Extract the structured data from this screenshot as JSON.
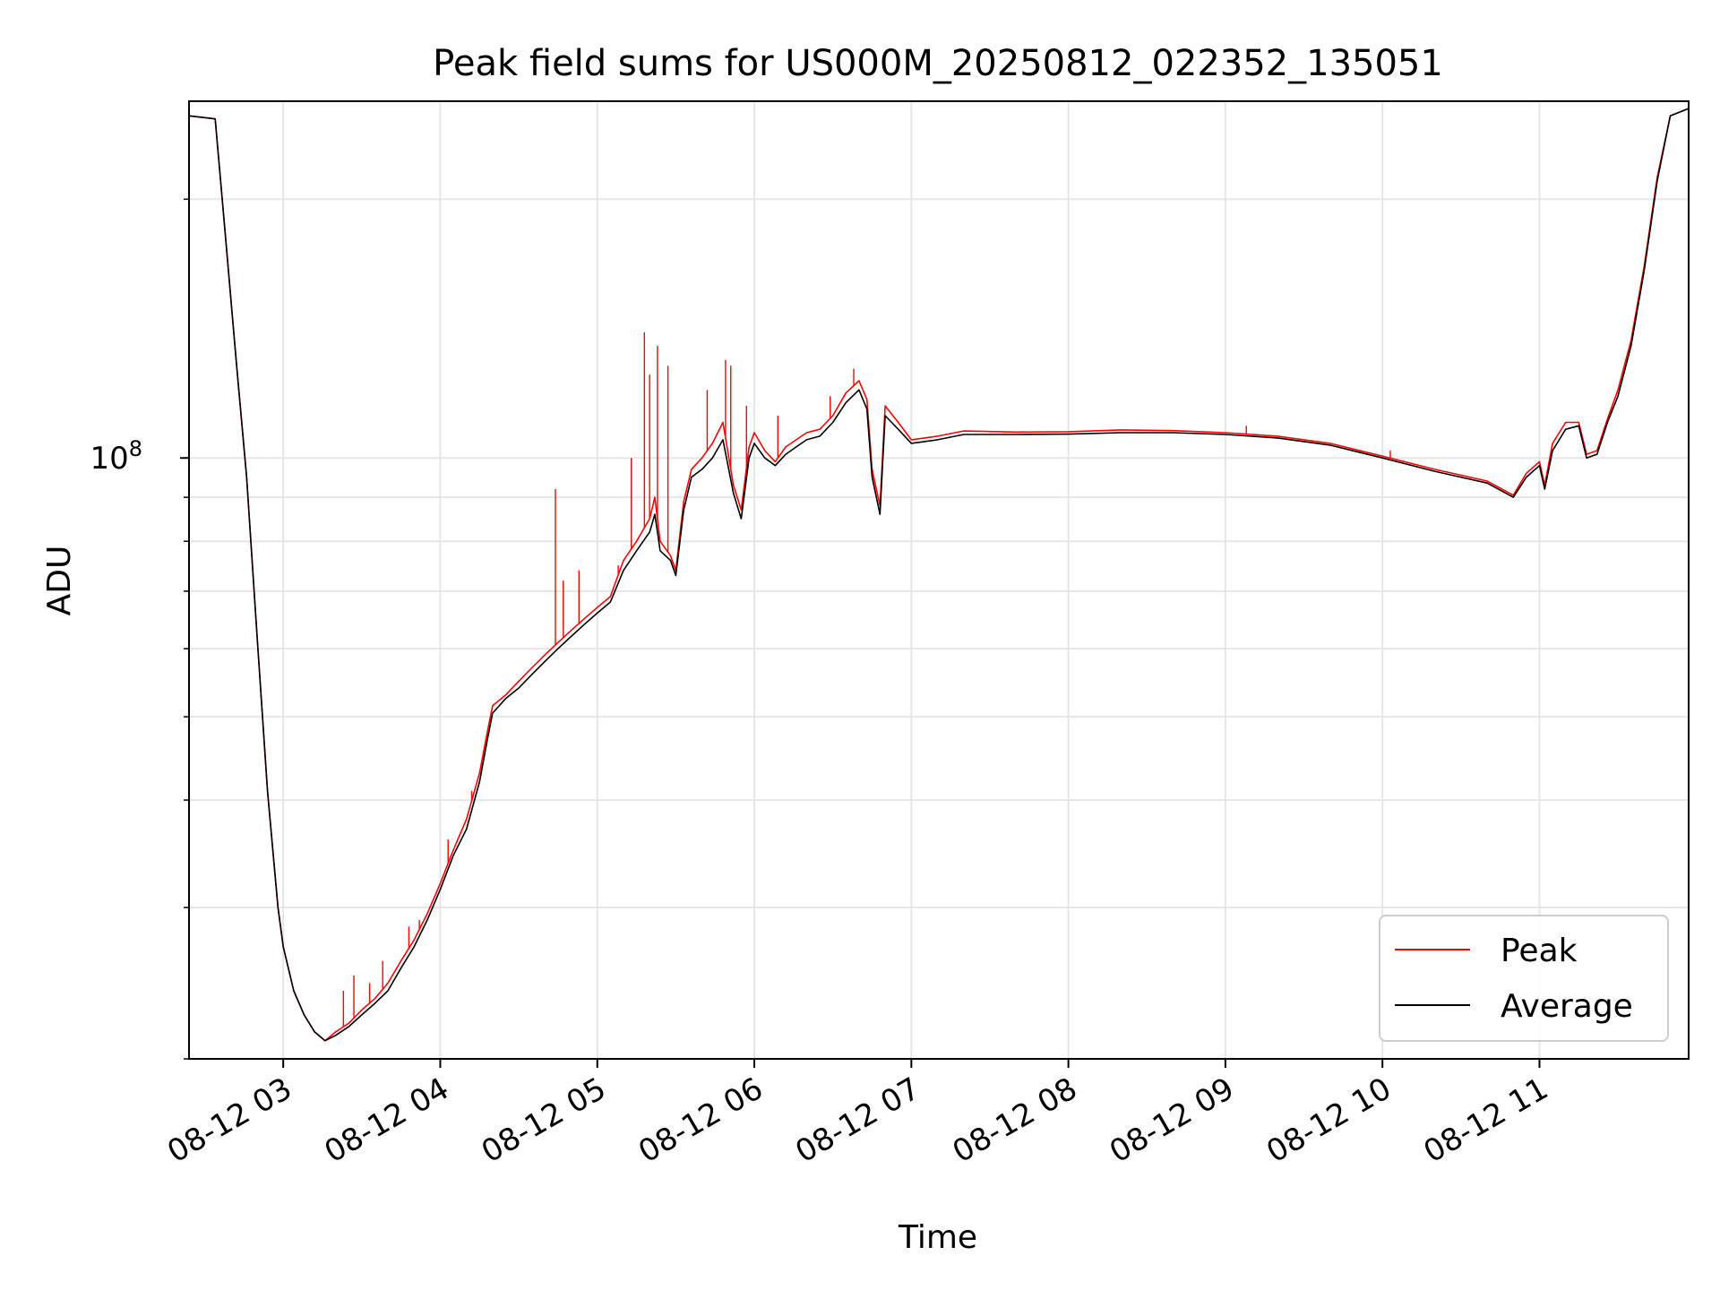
{
  "chart_data": {
    "type": "line",
    "title": "Peak field sums for US000M_20250812_022352_135051",
    "xlabel": "Time",
    "ylabel": "ADU",
    "yscale": "log",
    "ylim": [
      20000000,
      260000000
    ],
    "xlim": [
      "2025-08-12 02:24",
      "2025-08-12 11:57"
    ],
    "x_ticks": [
      "08-12 03",
      "08-12 04",
      "08-12 05",
      "08-12 06",
      "08-12 07",
      "08-12 08",
      "08-12 09",
      "08-12 10",
      "08-12 11"
    ],
    "y_ticks": [
      {
        "value": 100000000,
        "base": "10",
        "exp": "8"
      }
    ],
    "grid": true,
    "legend": {
      "placement": "lower-right",
      "entries": [
        {
          "label": "Peak",
          "color": "#ff0000"
        },
        {
          "label": "Average",
          "color": "#000000"
        }
      ]
    },
    "series": [
      {
        "name": "Average",
        "color": "#000000",
        "points": [
          [
            "2025-08-12 02:24",
            250000000
          ],
          [
            "2025-08-12 02:34",
            248000000
          ],
          [
            "2025-08-12 02:38",
            180000000
          ],
          [
            "2025-08-12 02:42",
            130000000
          ],
          [
            "2025-08-12 02:46",
            95000000
          ],
          [
            "2025-08-12 02:50",
            62000000
          ],
          [
            "2025-08-12 02:54",
            41000000
          ],
          [
            "2025-08-12 02:58",
            30000000
          ],
          [
            "2025-08-12 03:00",
            27000000
          ],
          [
            "2025-08-12 03:04",
            24000000
          ],
          [
            "2025-08-12 03:08",
            22500000
          ],
          [
            "2025-08-12 03:12",
            21500000
          ],
          [
            "2025-08-12 03:16",
            21000000
          ],
          [
            "2025-08-12 03:20",
            21300000
          ],
          [
            "2025-08-12 03:25",
            21800000
          ],
          [
            "2025-08-12 03:30",
            22500000
          ],
          [
            "2025-08-12 03:35",
            23200000
          ],
          [
            "2025-08-12 03:40",
            24000000
          ],
          [
            "2025-08-12 03:45",
            25500000
          ],
          [
            "2025-08-12 03:50",
            27000000
          ],
          [
            "2025-08-12 03:55",
            29000000
          ],
          [
            "2025-08-12 04:00",
            31500000
          ],
          [
            "2025-08-12 04:05",
            34500000
          ],
          [
            "2025-08-12 04:10",
            37000000
          ],
          [
            "2025-08-12 04:15",
            42000000
          ],
          [
            "2025-08-12 04:18",
            47000000
          ],
          [
            "2025-08-12 04:20",
            50500000
          ],
          [
            "2025-08-12 04:25",
            52500000
          ],
          [
            "2025-08-12 04:30",
            54000000
          ],
          [
            "2025-08-12 04:35",
            56000000
          ],
          [
            "2025-08-12 04:40",
            58000000
          ],
          [
            "2025-08-12 04:45",
            60000000
          ],
          [
            "2025-08-12 04:50",
            62000000
          ],
          [
            "2025-08-12 04:55",
            64000000
          ],
          [
            "2025-08-12 05:00",
            66000000
          ],
          [
            "2025-08-12 05:05",
            68000000
          ],
          [
            "2025-08-12 05:10",
            74000000
          ],
          [
            "2025-08-12 05:15",
            78000000
          ],
          [
            "2025-08-12 05:20",
            82000000
          ],
          [
            "2025-08-12 05:22",
            86000000
          ],
          [
            "2025-08-12 05:24",
            78000000
          ],
          [
            "2025-08-12 05:28",
            76000000
          ],
          [
            "2025-08-12 05:30",
            73000000
          ],
          [
            "2025-08-12 05:33",
            87000000
          ],
          [
            "2025-08-12 05:36",
            95000000
          ],
          [
            "2025-08-12 05:40",
            97000000
          ],
          [
            "2025-08-12 05:44",
            100000000
          ],
          [
            "2025-08-12 05:48",
            105000000
          ],
          [
            "2025-08-12 05:52",
            91000000
          ],
          [
            "2025-08-12 05:55",
            85000000
          ],
          [
            "2025-08-12 05:58",
            100000000
          ],
          [
            "2025-08-12 06:00",
            104000000
          ],
          [
            "2025-08-12 06:04",
            100000000
          ],
          [
            "2025-08-12 06:08",
            98000000
          ],
          [
            "2025-08-12 06:12",
            101000000
          ],
          [
            "2025-08-12 06:16",
            103000000
          ],
          [
            "2025-08-12 06:20",
            105000000
          ],
          [
            "2025-08-12 06:25",
            106000000
          ],
          [
            "2025-08-12 06:30",
            110000000
          ],
          [
            "2025-08-12 06:35",
            116000000
          ],
          [
            "2025-08-12 06:40",
            120000000
          ],
          [
            "2025-08-12 06:43",
            114000000
          ],
          [
            "2025-08-12 06:45",
            95000000
          ],
          [
            "2025-08-12 06:48",
            86000000
          ],
          [
            "2025-08-12 06:50",
            112000000
          ],
          [
            "2025-08-12 06:55",
            108000000
          ],
          [
            "2025-08-12 07:00",
            104000000
          ],
          [
            "2025-08-12 07:10",
            105000000
          ],
          [
            "2025-08-12 07:20",
            106500000
          ],
          [
            "2025-08-12 07:40",
            106500000
          ],
          [
            "2025-08-12 08:00",
            106600000
          ],
          [
            "2025-08-12 08:20",
            107000000
          ],
          [
            "2025-08-12 08:40",
            107000000
          ],
          [
            "2025-08-12 09:00",
            106500000
          ],
          [
            "2025-08-12 09:20",
            105500000
          ],
          [
            "2025-08-12 09:40",
            103500000
          ],
          [
            "2025-08-12 10:00",
            100000000
          ],
          [
            "2025-08-12 10:20",
            96500000
          ],
          [
            "2025-08-12 10:40",
            93500000
          ],
          [
            "2025-08-12 10:50",
            90000000
          ],
          [
            "2025-08-12 10:55",
            95000000
          ],
          [
            "2025-08-12 11:00",
            98000000
          ],
          [
            "2025-08-12 11:02",
            92000000
          ],
          [
            "2025-08-12 11:05",
            102000000
          ],
          [
            "2025-08-12 11:10",
            108000000
          ],
          [
            "2025-08-12 11:15",
            109000000
          ],
          [
            "2025-08-12 11:18",
            100000000
          ],
          [
            "2025-08-12 11:22",
            101000000
          ],
          [
            "2025-08-12 11:26",
            110000000
          ],
          [
            "2025-08-12 11:30",
            118000000
          ],
          [
            "2025-08-12 11:35",
            135000000
          ],
          [
            "2025-08-12 11:40",
            165000000
          ],
          [
            "2025-08-12 11:45",
            210000000
          ],
          [
            "2025-08-12 11:50",
            250000000
          ],
          [
            "2025-08-12 11:57",
            255000000
          ]
        ]
      },
      {
        "name": "Peak",
        "color": "#ff0000",
        "points": [
          [
            "2025-08-12 02:24",
            250000000
          ],
          [
            "2025-08-12 02:34",
            248000000
          ],
          [
            "2025-08-12 02:38",
            180000000
          ],
          [
            "2025-08-12 02:42",
            130000000
          ],
          [
            "2025-08-12 02:46",
            95000000
          ],
          [
            "2025-08-12 02:50",
            62000000
          ],
          [
            "2025-08-12 02:54",
            41000000
          ],
          [
            "2025-08-12 02:58",
            30000000
          ],
          [
            "2025-08-12 03:00",
            27000000
          ],
          [
            "2025-08-12 03:04",
            24000000
          ],
          [
            "2025-08-12 03:08",
            22500000
          ],
          [
            "2025-08-12 03:12",
            21500000
          ],
          [
            "2025-08-12 03:16",
            21000000
          ],
          [
            "2025-08-12 03:20",
            21500000
          ],
          [
            "2025-08-12 03:25",
            22000000
          ],
          [
            "2025-08-12 03:30",
            22800000
          ],
          [
            "2025-08-12 03:35",
            23500000
          ],
          [
            "2025-08-12 03:40",
            24500000
          ],
          [
            "2025-08-12 03:45",
            26000000
          ],
          [
            "2025-08-12 03:50",
            27500000
          ],
          [
            "2025-08-12 03:55",
            29500000
          ],
          [
            "2025-08-12 04:00",
            32000000
          ],
          [
            "2025-08-12 04:05",
            35000000
          ],
          [
            "2025-08-12 04:10",
            38000000
          ],
          [
            "2025-08-12 04:15",
            43000000
          ],
          [
            "2025-08-12 04:18",
            48000000
          ],
          [
            "2025-08-12 04:20",
            51500000
          ],
          [
            "2025-08-12 04:25",
            53000000
          ],
          [
            "2025-08-12 04:30",
            55000000
          ],
          [
            "2025-08-12 04:35",
            57000000
          ],
          [
            "2025-08-12 04:40",
            59000000
          ],
          [
            "2025-08-12 04:45",
            61000000
          ],
          [
            "2025-08-12 04:50",
            63000000
          ],
          [
            "2025-08-12 04:55",
            65000000
          ],
          [
            "2025-08-12 05:00",
            67000000
          ],
          [
            "2025-08-12 05:05",
            69000000
          ],
          [
            "2025-08-12 05:10",
            76000000
          ],
          [
            "2025-08-12 05:15",
            80000000
          ],
          [
            "2025-08-12 05:20",
            85000000
          ],
          [
            "2025-08-12 05:22",
            90000000
          ],
          [
            "2025-08-12 05:24",
            80000000
          ],
          [
            "2025-08-12 05:28",
            77000000
          ],
          [
            "2025-08-12 05:30",
            74000000
          ],
          [
            "2025-08-12 05:33",
            89000000
          ],
          [
            "2025-08-12 05:36",
            97000000
          ],
          [
            "2025-08-12 05:40",
            100000000
          ],
          [
            "2025-08-12 05:44",
            104000000
          ],
          [
            "2025-08-12 05:48",
            110000000
          ],
          [
            "2025-08-12 05:52",
            93000000
          ],
          [
            "2025-08-12 05:55",
            87000000
          ],
          [
            "2025-08-12 05:58",
            103000000
          ],
          [
            "2025-08-12 06:00",
            107000000
          ],
          [
            "2025-08-12 06:04",
            102000000
          ],
          [
            "2025-08-12 06:08",
            99000000
          ],
          [
            "2025-08-12 06:12",
            103000000
          ],
          [
            "2025-08-12 06:16",
            105000000
          ],
          [
            "2025-08-12 06:20",
            107000000
          ],
          [
            "2025-08-12 06:25",
            108000000
          ],
          [
            "2025-08-12 06:30",
            112000000
          ],
          [
            "2025-08-12 06:35",
            119000000
          ],
          [
            "2025-08-12 06:40",
            123000000
          ],
          [
            "2025-08-12 06:43",
            117000000
          ],
          [
            "2025-08-12 06:45",
            97000000
          ],
          [
            "2025-08-12 06:48",
            88000000
          ],
          [
            "2025-08-12 06:50",
            115000000
          ],
          [
            "2025-08-12 06:55",
            110000000
          ],
          [
            "2025-08-12 07:00",
            105000000
          ],
          [
            "2025-08-12 07:10",
            106000000
          ],
          [
            "2025-08-12 07:20",
            107500000
          ],
          [
            "2025-08-12 07:40",
            107200000
          ],
          [
            "2025-08-12 08:00",
            107300000
          ],
          [
            "2025-08-12 08:20",
            107800000
          ],
          [
            "2025-08-12 08:40",
            107600000
          ],
          [
            "2025-08-12 09:00",
            107000000
          ],
          [
            "2025-08-12 09:20",
            106000000
          ],
          [
            "2025-08-12 09:40",
            104000000
          ],
          [
            "2025-08-12 10:00",
            100500000
          ],
          [
            "2025-08-12 10:20",
            97000000
          ],
          [
            "2025-08-12 10:40",
            94000000
          ],
          [
            "2025-08-12 10:50",
            90500000
          ],
          [
            "2025-08-12 10:55",
            96000000
          ],
          [
            "2025-08-12 11:00",
            99000000
          ],
          [
            "2025-08-12 11:02",
            93000000
          ],
          [
            "2025-08-12 11:05",
            104000000
          ],
          [
            "2025-08-12 11:10",
            110000000
          ],
          [
            "2025-08-12 11:15",
            110000000
          ],
          [
            "2025-08-12 11:18",
            101000000
          ],
          [
            "2025-08-12 11:22",
            102000000
          ],
          [
            "2025-08-12 11:26",
            111000000
          ],
          [
            "2025-08-12 11:30",
            120000000
          ],
          [
            "2025-08-12 11:35",
            137000000
          ],
          [
            "2025-08-12 11:40",
            167000000
          ],
          [
            "2025-08-12 11:45",
            212000000
          ],
          [
            "2025-08-12 11:50",
            250000000
          ],
          [
            "2025-08-12 11:57",
            255000000
          ]
        ],
        "spikes": [
          [
            "2025-08-12 03:23",
            24000000
          ],
          [
            "2025-08-12 03:27",
            25000000
          ],
          [
            "2025-08-12 03:33",
            24500000
          ],
          [
            "2025-08-12 03:38",
            26000000
          ],
          [
            "2025-08-12 03:48",
            28500000
          ],
          [
            "2025-08-12 03:52",
            29000000
          ],
          [
            "2025-08-12 04:03",
            36000000
          ],
          [
            "2025-08-12 04:12",
            41000000
          ],
          [
            "2025-08-12 04:44",
            92000000
          ],
          [
            "2025-08-12 04:47",
            72000000
          ],
          [
            "2025-08-12 04:53",
            74000000
          ],
          [
            "2025-08-12 05:08",
            75000000
          ],
          [
            "2025-08-12 05:13",
            100000000
          ],
          [
            "2025-08-12 05:18",
            140000000
          ],
          [
            "2025-08-12 05:20",
            125000000
          ],
          [
            "2025-08-12 05:23",
            135000000
          ],
          [
            "2025-08-12 05:27",
            128000000
          ],
          [
            "2025-08-12 05:42",
            120000000
          ],
          [
            "2025-08-12 05:49",
            130000000
          ],
          [
            "2025-08-12 05:51",
            128000000
          ],
          [
            "2025-08-12 05:57",
            115000000
          ],
          [
            "2025-08-12 06:09",
            112000000
          ],
          [
            "2025-08-12 06:29",
            118000000
          ],
          [
            "2025-08-12 06:38",
            127000000
          ],
          [
            "2025-08-12 09:08",
            109000000
          ],
          [
            "2025-08-12 10:03",
            102000000
          ]
        ]
      }
    ]
  }
}
